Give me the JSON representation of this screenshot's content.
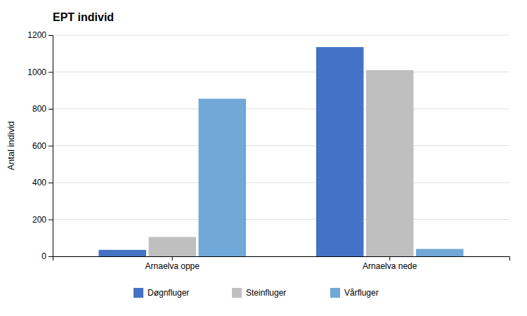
{
  "chart_data": {
    "type": "bar",
    "title": "EPT individ",
    "ylabel": "Antal individ",
    "categories": [
      "Arnaelva oppe",
      "Arnaelva nede"
    ],
    "series": [
      {
        "name": "Døgnfluger",
        "color": "#4472C4",
        "values": [
          35,
          1135
        ]
      },
      {
        "name": "Steinfluger",
        "color": "#BFBFBF",
        "values": [
          105,
          1010
        ]
      },
      {
        "name": "Vårfluger",
        "color": "#70A8D8",
        "values": [
          855,
          40
        ]
      }
    ],
    "ylim": [
      0,
      1200
    ],
    "yticks": [
      0,
      200,
      400,
      600,
      800,
      1000,
      1200
    ],
    "grid": true,
    "legend": "bottom"
  }
}
